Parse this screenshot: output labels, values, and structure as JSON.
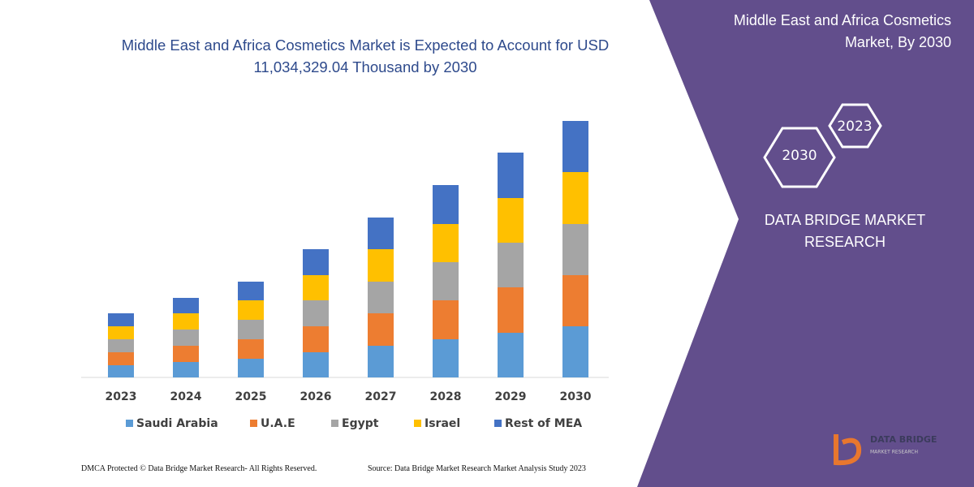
{
  "chart_data": {
    "type": "stacked-bar",
    "title": "Middle East and Africa Cosmetics Market is Expected to Account for USD 11,034,329.04 Thousand by 2030",
    "categories": [
      "2023",
      "2024",
      "2025",
      "2026",
      "2027",
      "2028",
      "2029",
      "2030"
    ],
    "series": [
      {
        "name": "Saudi Arabia",
        "color": "#5b9bd5",
        "values": [
          15,
          19,
          23,
          31,
          39,
          47,
          55,
          63
        ]
      },
      {
        "name": "U.A.E",
        "color": "#ed7d31",
        "values": [
          16,
          20,
          24,
          32,
          40,
          48,
          56,
          63
        ]
      },
      {
        "name": "Egypt",
        "color": "#a5a5a5",
        "values": [
          16,
          20,
          24,
          32,
          39,
          47,
          55,
          63
        ]
      },
      {
        "name": "Israel",
        "color": "#ffc000",
        "values": [
          16,
          20,
          24,
          31,
          40,
          47,
          55,
          64
        ]
      },
      {
        "name": "Rest of MEA",
        "color": "#4472c4",
        "values": [
          16,
          19,
          23,
          32,
          39,
          48,
          56,
          63
        ]
      }
    ],
    "ylim": [
      0,
      320
    ],
    "grid": false,
    "legend": "bottom"
  },
  "panel": {
    "title": "Middle East and Africa Cosmetics Market, By 2030",
    "hex_small": "2023",
    "hex_large": "2030",
    "brand": "DATA BRIDGE MARKET RESEARCH",
    "logo_name": "DATA BRIDGE",
    "logo_tagline": "MARKET RESEARCH"
  },
  "footer": {
    "left": "DMCA Protected © Data Bridge Market Research-  All Rights Reserved.",
    "right": "Source: Data Bridge Market Research  Market Analysis Study 2023"
  }
}
